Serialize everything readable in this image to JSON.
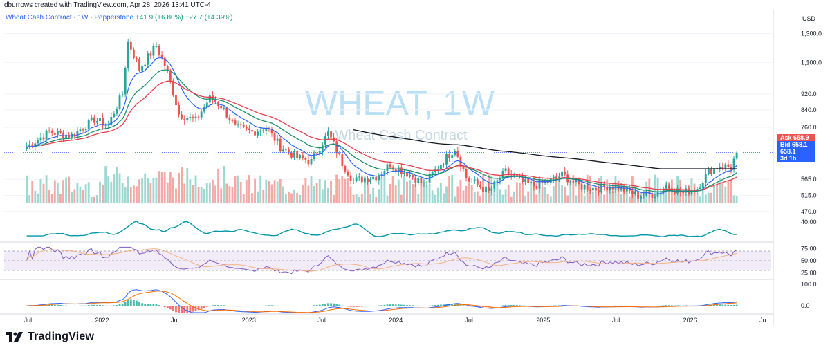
{
  "caption": "dburrows created with TradingView.com, Apr 28, 2026 13:41 UTC-4",
  "legend": {
    "symbol": "Wheat Cash Contract · 1W · Pepperstone",
    "change1": "+41.9 (+6.80%)",
    "change2": "+27.7 (+4.39%)"
  },
  "watermark": {
    "ticker": "WHEAT, 1W",
    "name": "Wheat Cash Contract"
  },
  "brand": "TradingView",
  "colors": {
    "up": "#26a69a",
    "down": "#ef5350",
    "ema_fast": "#2962ff",
    "ema_mid": "#1e8f6e",
    "ema_slow": "#e83e4b",
    "ema_long": "#131722",
    "rsi": "#7e57c2",
    "rsi_ma": "#f4b183",
    "watermark": "#b8dff5"
  },
  "chart_data": {
    "type": "candlestick",
    "currency": "USD",
    "price_axis": {
      "ticks": [
        "1,300.0",
        "1,100.0",
        "920.0",
        "840.0",
        "760.0",
        "565.0",
        "515.0",
        "470.0"
      ],
      "tick_values": [
        1300,
        1100,
        920,
        840,
        760,
        565,
        515,
        470
      ],
      "range": [
        455,
        1420
      ],
      "scale": "log"
    },
    "time_axis": {
      "labels": [
        "Jul",
        "2022",
        "Jul",
        "2023",
        "Jul",
        "2024",
        "Jul",
        "2025",
        "Jul",
        "2026",
        "Ju"
      ]
    },
    "price_tags": [
      {
        "label": "Ask",
        "value": "658.9",
        "color": "#ef5350"
      },
      {
        "label": "Bid",
        "value": "658.1",
        "color": "#2962ff"
      },
      {
        "label": "",
        "value": "658.1",
        "color": "#2962ff"
      },
      {
        "label": "",
        "value": "3d 1h",
        "color": "#2962ff"
      }
    ],
    "anchors": [
      [
        "2021-06-28",
        680
      ],
      [
        "2021-08-23",
        740
      ],
      [
        "2021-10-18",
        725
      ],
      [
        "2021-12-13",
        795
      ],
      [
        "2022-01-17",
        770
      ],
      [
        "2022-02-21",
        920
      ],
      [
        "2022-03-07",
        1240
      ],
      [
        "2022-04-04",
        1060
      ],
      [
        "2022-05-16",
        1210
      ],
      [
        "2022-06-13",
        1040
      ],
      [
        "2022-07-11",
        820
      ],
      [
        "2022-08-22",
        790
      ],
      [
        "2022-09-26",
        900
      ],
      [
        "2022-10-24",
        860
      ],
      [
        "2022-11-28",
        760
      ],
      [
        "2023-01-09",
        740
      ],
      [
        "2023-02-13",
        760
      ],
      [
        "2023-03-20",
        680
      ],
      [
        "2023-05-01",
        640
      ],
      [
        "2023-06-05",
        625
      ],
      [
        "2023-07-17",
        735
      ],
      [
        "2023-08-21",
        620
      ],
      [
        "2023-09-18",
        560
      ],
      [
        "2023-11-13",
        575
      ],
      [
        "2023-12-18",
        615
      ],
      [
        "2024-02-05",
        580
      ],
      [
        "2024-03-11",
        548
      ],
      [
        "2024-04-15",
        605
      ],
      [
        "2024-05-27",
        675
      ],
      [
        "2024-06-24",
        570
      ],
      [
        "2024-08-19",
        525
      ],
      [
        "2024-09-30",
        590
      ],
      [
        "2024-11-11",
        555
      ],
      [
        "2024-12-09",
        545
      ],
      [
        "2025-01-20",
        560
      ],
      [
        "2025-02-17",
        580
      ],
      [
        "2025-03-31",
        545
      ],
      [
        "2025-05-12",
        535
      ],
      [
        "2025-06-16",
        545
      ],
      [
        "2025-07-28",
        530
      ],
      [
        "2025-08-25",
        515
      ],
      [
        "2025-10-06",
        520
      ],
      [
        "2025-11-03",
        545
      ],
      [
        "2025-12-15",
        522
      ],
      [
        "2026-01-19",
        538
      ],
      [
        "2026-02-16",
        590
      ],
      [
        "2026-03-16",
        612
      ],
      [
        "2026-04-13",
        605
      ],
      [
        "2026-04-27",
        658.1
      ]
    ],
    "last_close": 658.1,
    "volume_panel": {
      "max": 1.0
    },
    "oscillator_panel": {
      "ticks": [
        "40.00"
      ]
    },
    "rsi_panel": {
      "ticks": [
        "75.00",
        "50.00",
        "25.00"
      ],
      "upper": 70,
      "lower": 30
    },
    "macd_panel": {
      "ticks": [
        "100.0",
        "0.0"
      ]
    }
  }
}
